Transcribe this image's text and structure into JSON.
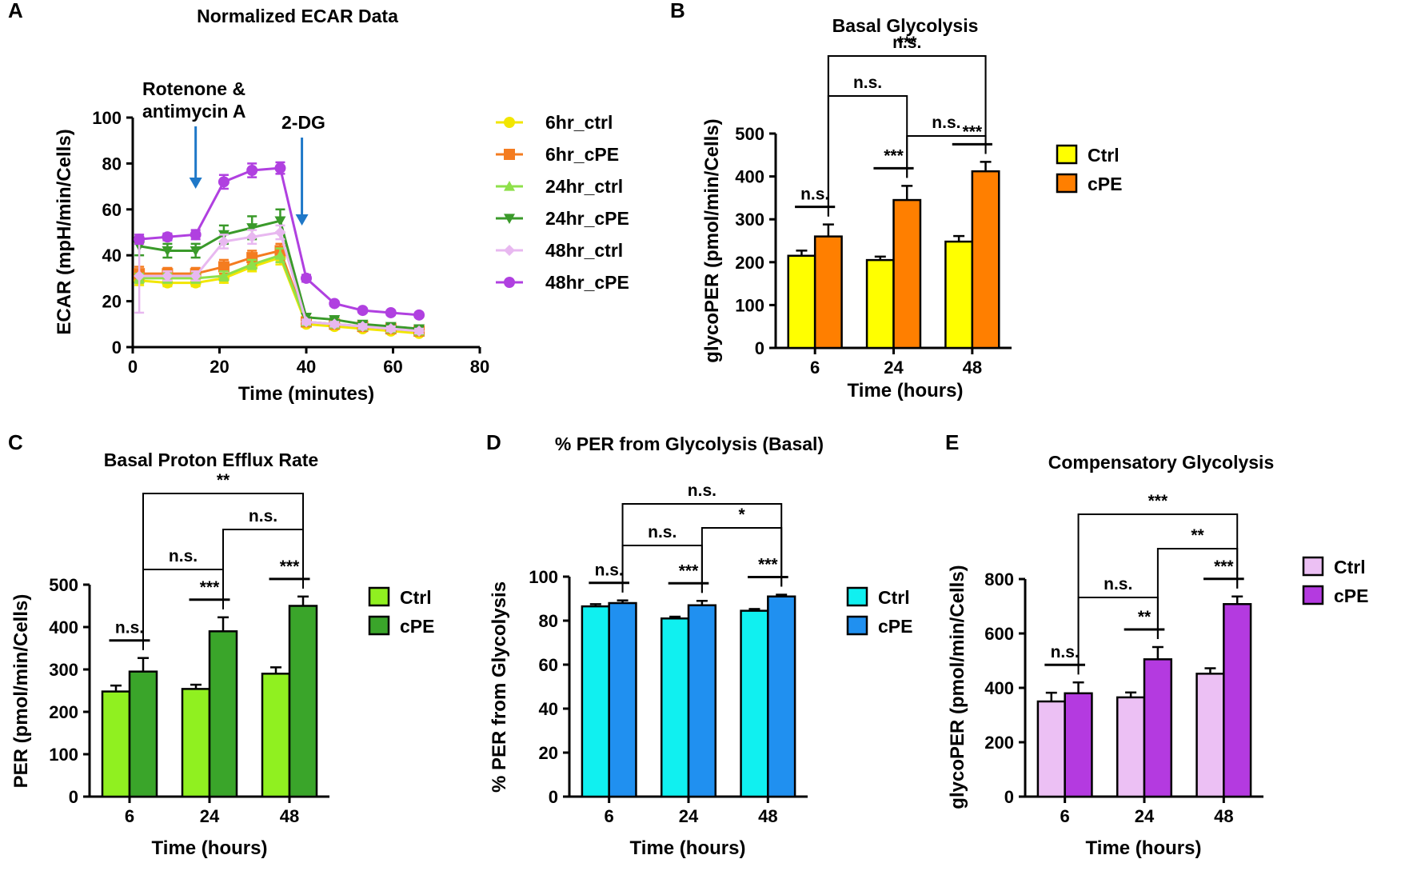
{
  "chart_data": [
    {
      "panel": "A",
      "type": "line",
      "title": "Normalized ECAR Data",
      "xlabel": "Time (minutes)",
      "ylabel": "ECAR (mpH/min/Cells)",
      "xlim": [
        0,
        80
      ],
      "ylim": [
        0,
        100
      ],
      "xticks": [
        0,
        20,
        40,
        60,
        80
      ],
      "yticks": [
        0,
        20,
        40,
        60,
        80,
        100
      ],
      "x": [
        1.5,
        8,
        14.5,
        21,
        27.5,
        34,
        40,
        46.5,
        53,
        59.5,
        66
      ],
      "annotations": [
        {
          "text_lines": [
            "Rotenone &",
            "antimycin A"
          ],
          "at_x": 14.5,
          "arrow_color": "#1f78c8"
        },
        {
          "text_lines": [
            "2-DG"
          ],
          "at_x": 39,
          "arrow_color": "#1f78c8"
        }
      ],
      "series": [
        {
          "name": "6hr_ctrl",
          "color": "#f2e600",
          "marker": "circle",
          "values": [
            29,
            28,
            28,
            30,
            35,
            39,
            10,
            9,
            8,
            7,
            6
          ],
          "errors": [
            2,
            1.5,
            1.5,
            2,
            2,
            3,
            1,
            1,
            1,
            1,
            1
          ]
        },
        {
          "name": "6hr_cPE",
          "color": "#f47c20",
          "marker": "square",
          "values": [
            32,
            32,
            32,
            35,
            39,
            42,
            11,
            10,
            9,
            8,
            7
          ],
          "errors": [
            3,
            2.5,
            2.5,
            3,
            3,
            3,
            1,
            1,
            1,
            1,
            1
          ]
        },
        {
          "name": "24hr_ctrl",
          "color": "#8ee04a",
          "marker": "triangle-up",
          "values": [
            30,
            30,
            30,
            31,
            36,
            40,
            11,
            10,
            9,
            8,
            7
          ],
          "errors": [
            2,
            2,
            2,
            2,
            2,
            3,
            1,
            1,
            1,
            1,
            1
          ]
        },
        {
          "name": "24hr_cPE",
          "color": "#3a9a2a",
          "marker": "triangle-down",
          "values": [
            44,
            42,
            42,
            49,
            52,
            55,
            13,
            12,
            10,
            9,
            8
          ],
          "errors": [
            4,
            3,
            3,
            4,
            5,
            5,
            1.5,
            1,
            1,
            1,
            1
          ]
        },
        {
          "name": "48hr_ctrl",
          "color": "#e8b8f0",
          "marker": "diamond",
          "values": [
            31,
            31,
            31,
            46,
            48,
            50,
            11,
            10,
            9,
            8,
            7
          ],
          "errors": [
            16,
            2,
            2,
            3,
            3,
            3,
            1,
            1,
            1,
            1,
            1
          ]
        },
        {
          "name": "48hr_cPE",
          "color": "#b040e0",
          "marker": "circle",
          "values": [
            47,
            48,
            49,
            72,
            77,
            78,
            30,
            19,
            16,
            15,
            14
          ],
          "errors": [
            2,
            1.5,
            2,
            3,
            3,
            2.5,
            1.5,
            1,
            1,
            1,
            1
          ]
        }
      ]
    },
    {
      "panel": "B",
      "type": "bar",
      "title": "Basal Glycolysis",
      "xlabel": "Time (hours)",
      "ylabel": "glycoPER (pmol/min/Cells)",
      "categories": [
        "6",
        "24",
        "48"
      ],
      "ylim": [
        0,
        500
      ],
      "yticks": [
        0,
        100,
        200,
        300,
        400,
        500
      ],
      "series": [
        {
          "name": "Ctrl",
          "color": "#ffff00",
          "values": [
            215,
            205,
            248
          ],
          "errors": [
            12,
            8,
            13
          ]
        },
        {
          "name": "cPE",
          "color": "#ff7f00",
          "values": [
            260,
            345,
            412
          ],
          "errors": [
            28,
            33,
            22
          ]
        }
      ],
      "within": [
        "n.s.",
        "***",
        "***"
      ],
      "brackets": [
        {
          "from": 1,
          "to": 2,
          "label": "n.s."
        },
        {
          "from": 0,
          "to": 1,
          "label": "n.s."
        },
        {
          "from": 0,
          "to": 2,
          "label": "n.s."
        },
        {
          "from": 0,
          "to": 2,
          "label": "***"
        }
      ]
    },
    {
      "panel": "C",
      "type": "bar",
      "title": "Basal Proton Efflux Rate",
      "xlabel": "Time (hours)",
      "ylabel": "PER (pmol/min/Cells)",
      "categories": [
        "6",
        "24",
        "48"
      ],
      "ylim": [
        0,
        500
      ],
      "yticks": [
        0,
        100,
        200,
        300,
        400,
        500
      ],
      "series": [
        {
          "name": "Ctrl",
          "color": "#90f020",
          "values": [
            248,
            254,
            290
          ],
          "errors": [
            14,
            10,
            15
          ]
        },
        {
          "name": "cPE",
          "color": "#3aa52a",
          "values": [
            295,
            390,
            450
          ],
          "errors": [
            32,
            33,
            22
          ]
        }
      ],
      "within": [
        "n.s.",
        "***",
        "***"
      ],
      "brackets": [
        {
          "from": 1,
          "to": 2,
          "label": "n.s."
        },
        {
          "from": 0,
          "to": 1,
          "label": "n.s."
        },
        {
          "from": 0,
          "to": 2,
          "label": "**"
        }
      ]
    },
    {
      "panel": "D",
      "type": "bar",
      "title": "% PER from Glycolysis (Basal)",
      "xlabel": "Time (hours)",
      "ylabel": "% PER from Glycolysis",
      "categories": [
        "6",
        "24",
        "48"
      ],
      "ylim": [
        0,
        100
      ],
      "yticks": [
        0,
        20,
        40,
        60,
        80,
        100
      ],
      "series": [
        {
          "name": "Ctrl",
          "color": "#10f0f0",
          "values": [
            86.5,
            81,
            84.5
          ],
          "errors": [
            1,
            0.8,
            0.8
          ]
        },
        {
          "name": "cPE",
          "color": "#2090f0",
          "values": [
            88,
            87,
            91
          ],
          "errors": [
            1.2,
            2,
            0.8
          ]
        }
      ],
      "within": [
        "n.s.",
        "***",
        "***"
      ],
      "brackets": [
        {
          "from": 1,
          "to": 2,
          "label": "*"
        },
        {
          "from": 0,
          "to": 1,
          "label": "n.s."
        },
        {
          "from": 0,
          "to": 2,
          "label": "n.s."
        }
      ]
    },
    {
      "panel": "E",
      "type": "bar",
      "title": "Compensatory Glycolysis",
      "xlabel": "Time (hours)",
      "ylabel": "glycoPER (pmol/min/Cells)",
      "categories": [
        "6",
        "24",
        "48"
      ],
      "ylim": [
        0,
        800
      ],
      "yticks": [
        0,
        200,
        400,
        600,
        800
      ],
      "series": [
        {
          "name": "Ctrl",
          "color": "#ecc0f4",
          "values": [
            350,
            365,
            452
          ],
          "errors": [
            32,
            18,
            20
          ]
        },
        {
          "name": "cPE",
          "color": "#b43ae0",
          "values": [
            380,
            505,
            708
          ],
          "errors": [
            40,
            45,
            28
          ]
        }
      ],
      "within": [
        "n.s.",
        "**",
        "***"
      ],
      "brackets": [
        {
          "from": 1,
          "to": 2,
          "label": "**"
        },
        {
          "from": 0,
          "to": 1,
          "label": "n.s."
        },
        {
          "from": 0,
          "to": 2,
          "label": "***"
        }
      ]
    }
  ]
}
